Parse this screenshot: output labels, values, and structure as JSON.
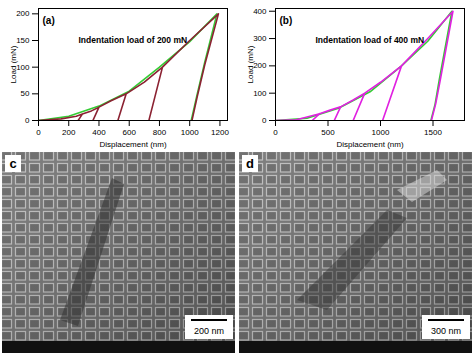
{
  "chart_data": [
    {
      "type": "line",
      "panel_label": "(a)",
      "annotation": "Indentation load of 200 mN",
      "x_label": "Displacement (nm)",
      "y_label": "Load (mN)",
      "xlim": [
        0,
        1250
      ],
      "xticks": [
        0,
        200,
        400,
        600,
        800,
        1000,
        1200
      ],
      "ylim": [
        0,
        210
      ],
      "yticks": [
        0,
        50,
        100,
        150,
        200
      ],
      "grid": false,
      "series": [
        {
          "color": "#33cc33",
          "x": [
            0,
            200,
            400,
            600,
            800,
            1000,
            1180,
            1100,
            1050,
            1010
          ],
          "values": [
            0,
            8,
            27,
            55,
            100,
            148,
            200,
            110,
            50,
            0
          ]
        },
        {
          "color": "#8b2232",
          "x": [
            0,
            150,
            250,
            290,
            262,
            290,
            350,
            400,
            360,
            400,
            480,
            580,
            525,
            580,
            700,
            820,
            730,
            820,
            1000,
            1190,
            1100,
            1050,
            1015
          ],
          "values": [
            0,
            3,
            8,
            12,
            0,
            12,
            18,
            25,
            0,
            25,
            37,
            50,
            0,
            50,
            72,
            100,
            0,
            100,
            150,
            200,
            105,
            45,
            0
          ]
        }
      ]
    },
    {
      "type": "line",
      "panel_label": "(b)",
      "annotation": "Indentation load of 400 mN",
      "x_label": "Displacement (nm)",
      "y_label": "Load (mN)",
      "xlim": [
        0,
        1800
      ],
      "xticks": [
        0,
        500,
        1000,
        1500
      ],
      "ylim": [
        0,
        410
      ],
      "yticks": [
        0,
        100,
        200,
        300,
        400
      ],
      "grid": false,
      "series": [
        {
          "color": "#33cc33",
          "x": [
            0,
            300,
            600,
            900,
            1200,
            1450,
            1680,
            1560,
            1520,
            1480
          ],
          "values": [
            0,
            8,
            45,
            105,
            200,
            290,
            400,
            150,
            60,
            0
          ]
        },
        {
          "color": "#e020e0",
          "x": [
            0,
            200,
            420,
            350,
            420,
            520,
            620,
            560,
            620,
            740,
            850,
            740,
            850,
            1000,
            1200,
            1020,
            1200,
            1450,
            1690,
            1570,
            1525,
            1485
          ],
          "values": [
            0,
            3,
            25,
            0,
            25,
            38,
            50,
            0,
            50,
            75,
            100,
            0,
            100,
            140,
            200,
            0,
            200,
            300,
            400,
            150,
            60,
            0
          ]
        }
      ]
    }
  ],
  "images": [
    {
      "panel_label": "c",
      "scale_bar": "200 nm"
    },
    {
      "panel_label": "d",
      "scale_bar": "300 nm"
    }
  ]
}
